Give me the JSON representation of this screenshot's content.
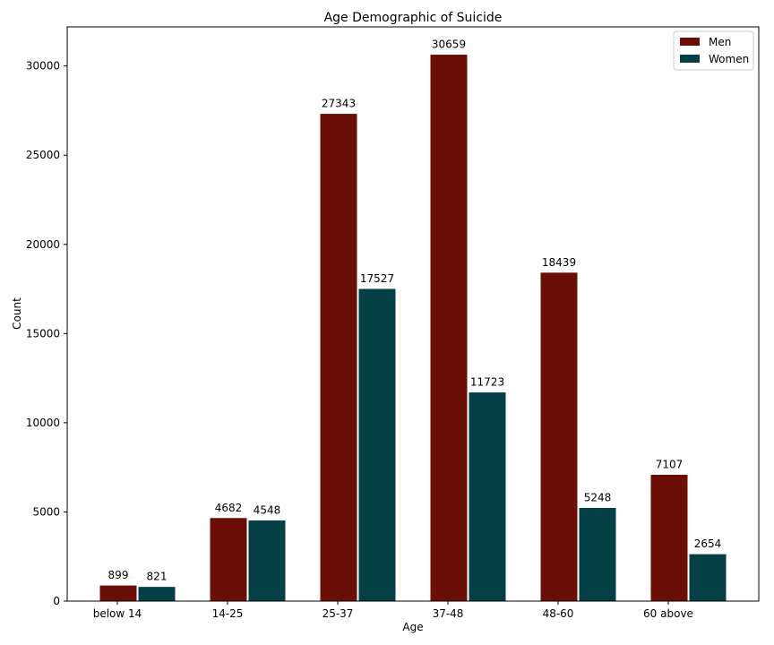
{
  "chart_data": {
    "type": "bar",
    "title": "Age Demographic of Suicide",
    "xlabel": "Age",
    "ylabel": "Count",
    "categories": [
      "below 14",
      "14-25",
      "25-37",
      "37-48",
      "48-60",
      "60 above"
    ],
    "series": [
      {
        "name": "Men",
        "values": [
          899,
          4682,
          27343,
          30659,
          18439,
          7107
        ],
        "color": "#6b0e06"
      },
      {
        "name": "Women",
        "values": [
          821,
          4548,
          17527,
          11723,
          5248,
          2654
        ],
        "color": "#033f45"
      }
    ],
    "ylim": [
      0,
      32193
    ],
    "yticks": [
      0,
      5000,
      10000,
      15000,
      20000,
      25000,
      30000
    ],
    "grid": false,
    "legend_position": "top-right"
  }
}
